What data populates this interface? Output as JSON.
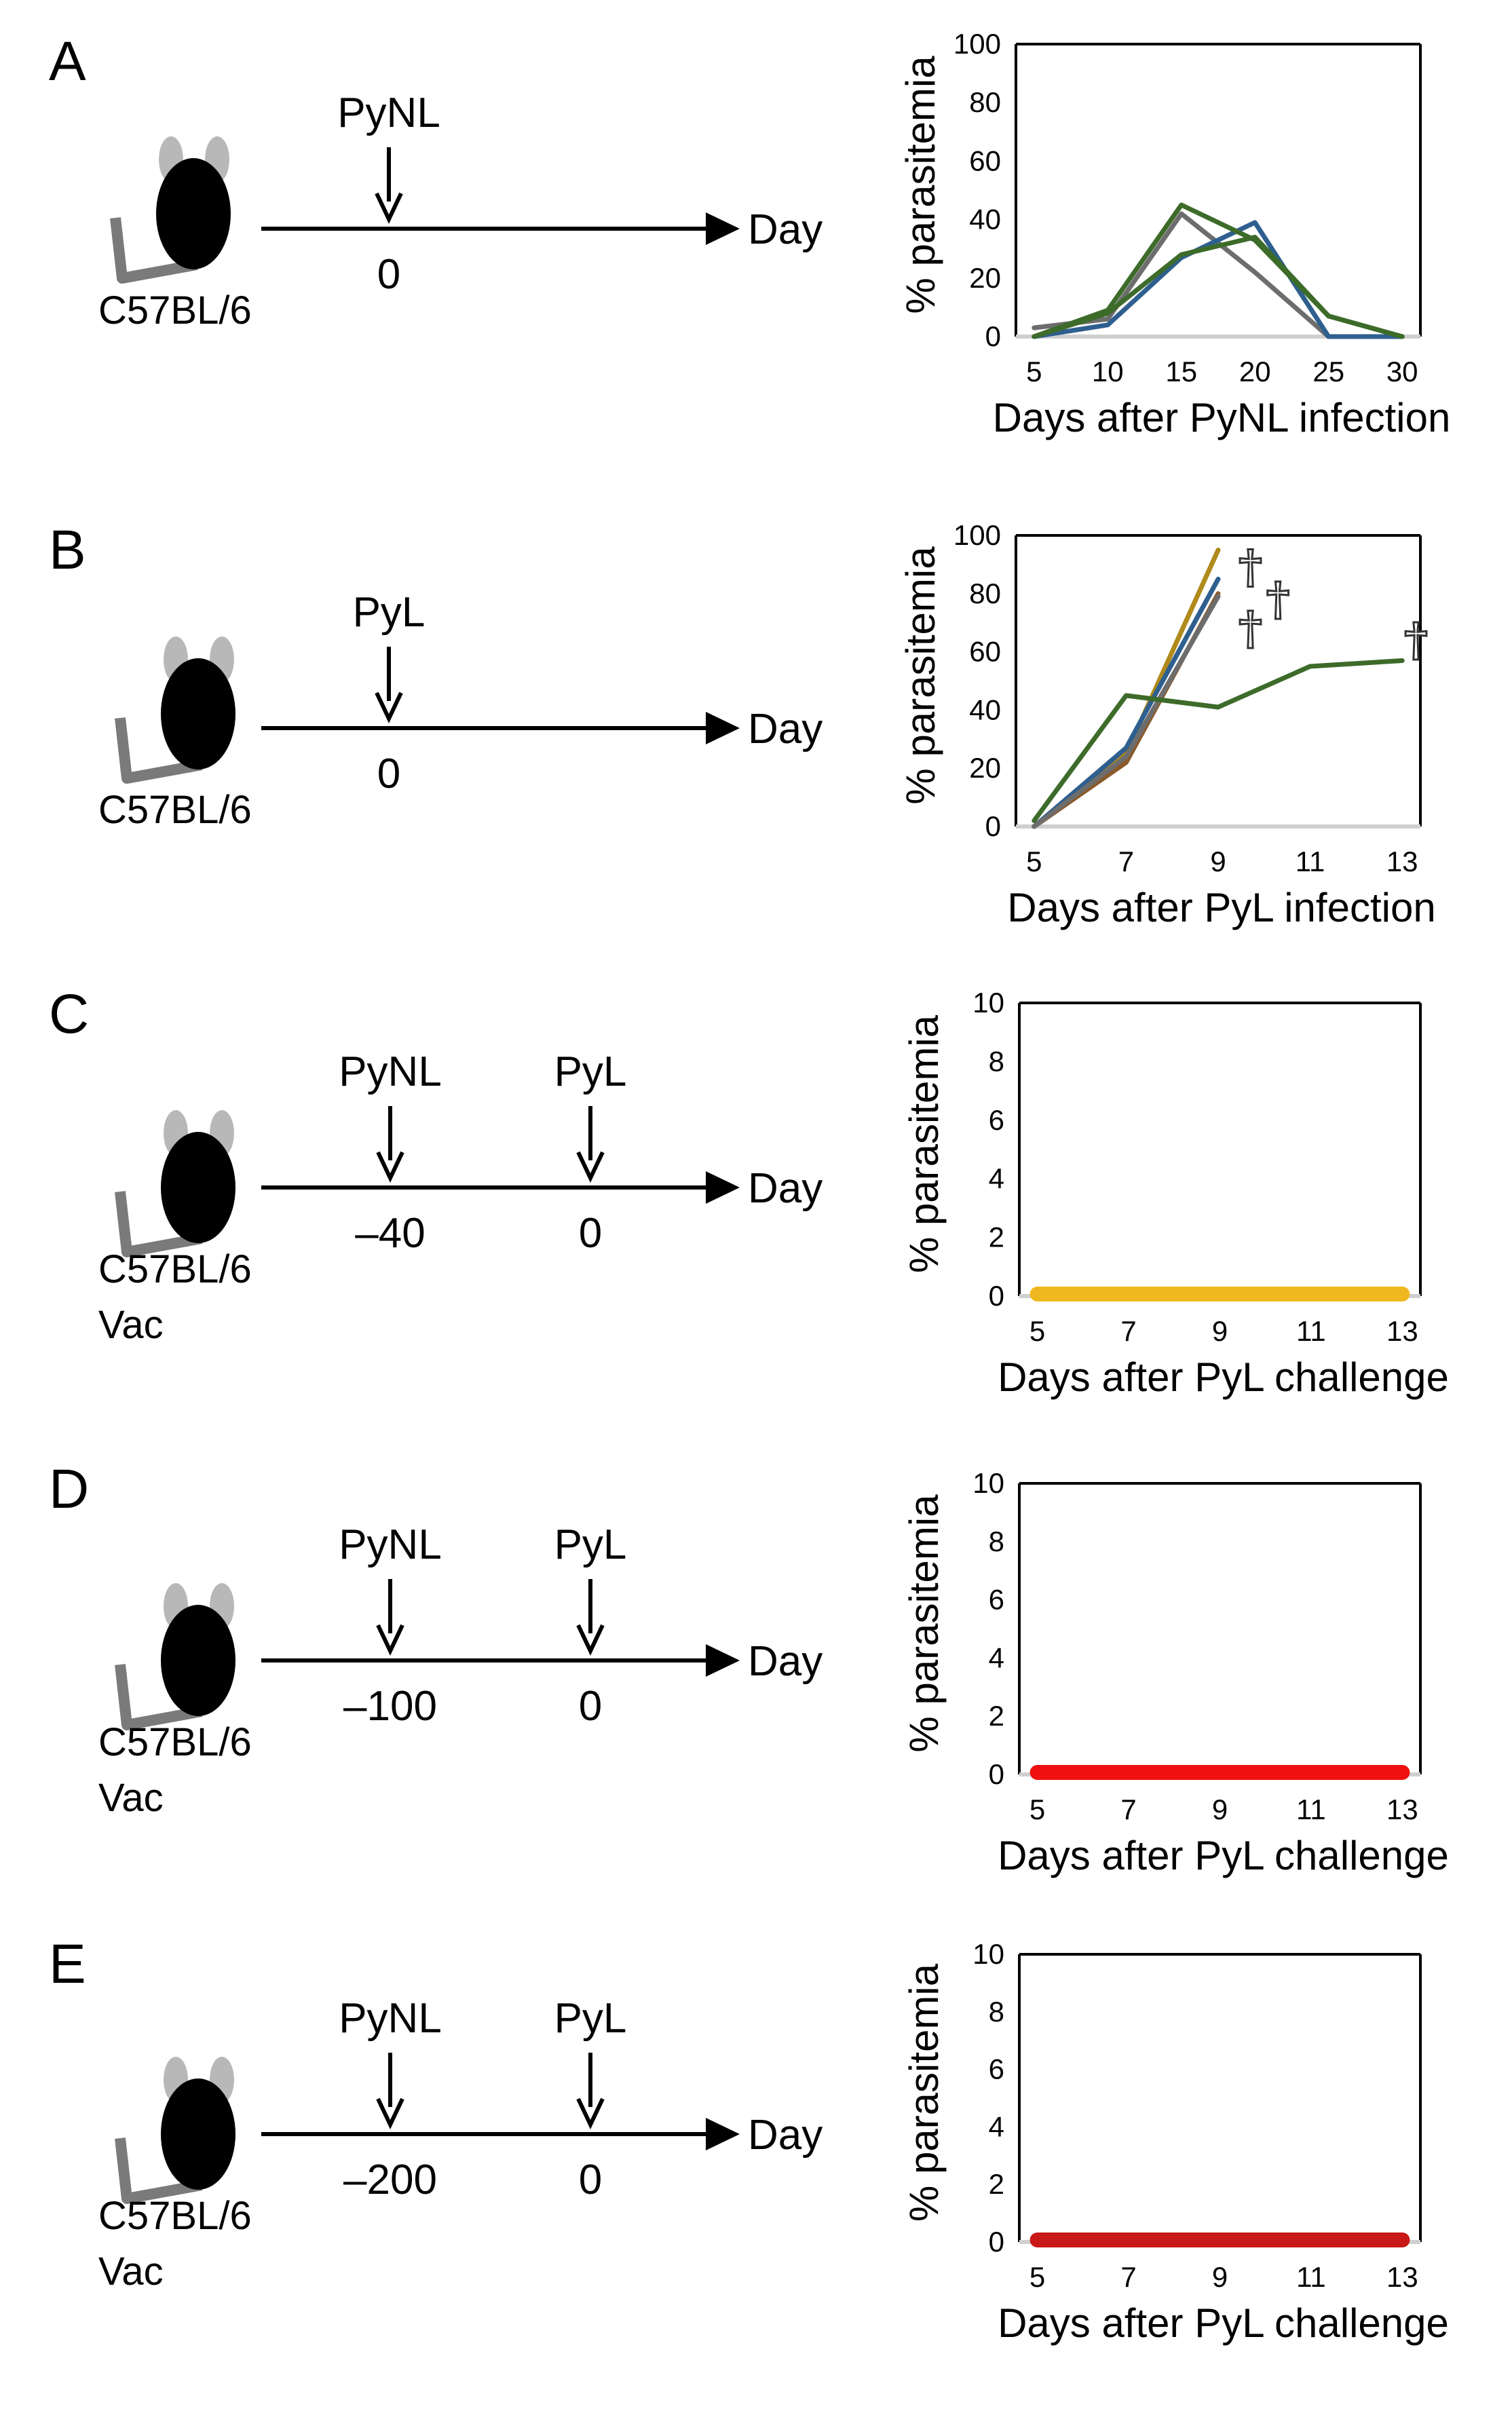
{
  "colors": {
    "gray": "#6d6d6d",
    "blue": "#2e5f8f",
    "green": "#3d6b2a",
    "gold": "#b08a1a",
    "brown": "#8a5a2a",
    "yellow": "#f0b820",
    "red": "#f01010",
    "darkred": "#c81818"
  },
  "panels": [
    {
      "letter": "A",
      "mouse_label": [
        "C57BL/6"
      ],
      "timeline": {
        "end_label": "Day",
        "events": [
          {
            "name": "PyNL",
            "day_label": "0"
          }
        ]
      },
      "chart_data": {
        "type": "line",
        "xlabel": "Days after PyNL infection",
        "ylabel": "% parasitemia",
        "xlim": [
          5,
          30
        ],
        "x_ticks": [
          "5",
          "10",
          "15",
          "20",
          "25",
          "30"
        ],
        "ylim": [
          0,
          100
        ],
        "y_ticks": [
          "0",
          "20",
          "40",
          "60",
          "80",
          "100"
        ],
        "series": [
          {
            "color_key": "gray",
            "points": [
              [
                5,
                3
              ],
              [
                10,
                6
              ],
              [
                15,
                42
              ],
              [
                20,
                22
              ],
              [
                25,
                0
              ],
              [
                30,
                0
              ]
            ]
          },
          {
            "color_key": "blue",
            "points": [
              [
                5,
                0
              ],
              [
                10,
                4
              ],
              [
                15,
                27
              ],
              [
                20,
                39
              ],
              [
                25,
                0
              ],
              [
                30,
                0
              ]
            ]
          },
          {
            "color_key": "green",
            "points": [
              [
                5,
                0
              ],
              [
                10,
                9
              ],
              [
                15,
                45
              ],
              [
                20,
                33
              ],
              [
                25,
                7
              ],
              [
                30,
                0
              ]
            ]
          },
          {
            "color_key": "green",
            "points": [
              [
                5,
                0
              ],
              [
                10,
                8
              ],
              [
                15,
                28
              ],
              [
                20,
                34
              ],
              [
                25,
                7
              ],
              [
                30,
                0
              ]
            ]
          }
        ],
        "death_markers": []
      }
    },
    {
      "letter": "B",
      "mouse_label": [
        "C57BL/6"
      ],
      "timeline": {
        "end_label": "Day",
        "events": [
          {
            "name": "PyL",
            "day_label": "0"
          }
        ]
      },
      "chart_data": {
        "type": "line",
        "xlabel": "Days after PyL infection",
        "ylabel": "% parasitemia",
        "xlim": [
          5,
          13
        ],
        "x_ticks": [
          "5",
          "7",
          "9",
          "11",
          "13"
        ],
        "ylim": [
          0,
          100
        ],
        "y_ticks": [
          "0",
          "20",
          "40",
          "60",
          "80",
          "100"
        ],
        "series": [
          {
            "color_key": "gold",
            "points": [
              [
                5,
                0
              ],
              [
                7,
                25
              ],
              [
                9,
                95
              ]
            ]
          },
          {
            "color_key": "brown",
            "points": [
              [
                5,
                0
              ],
              [
                7,
                22
              ],
              [
                9,
                80
              ]
            ]
          },
          {
            "color_key": "blue",
            "points": [
              [
                5,
                0
              ],
              [
                7,
                27
              ],
              [
                9,
                85
              ]
            ]
          },
          {
            "color_key": "gray",
            "points": [
              [
                5,
                0
              ],
              [
                7,
                24
              ],
              [
                9,
                79
              ]
            ]
          },
          {
            "color_key": "green",
            "points": [
              [
                5,
                2
              ],
              [
                7,
                45
              ],
              [
                9,
                41
              ],
              [
                11,
                55
              ],
              [
                13,
                57
              ]
            ]
          }
        ],
        "death_markers": [
          {
            "glyph": "†",
            "x": 9.7,
            "y": 89
          },
          {
            "glyph": "†",
            "x": 10.3,
            "y": 78
          },
          {
            "glyph": "†",
            "x": 9.7,
            "y": 68
          },
          {
            "glyph": "†",
            "x": 13.3,
            "y": 64
          }
        ]
      }
    },
    {
      "letter": "C",
      "mouse_label": [
        "C57BL/6",
        "Vac"
      ],
      "timeline": {
        "end_label": "Day",
        "events": [
          {
            "name": "PyNL",
            "day_label": "–40"
          },
          {
            "name": "PyL",
            "day_label": "0"
          }
        ]
      },
      "chart_data": {
        "type": "line",
        "xlabel": "Days after PyL challenge",
        "ylabel": "% parasitemia",
        "xlim": [
          5,
          13
        ],
        "x_ticks": [
          "5",
          "7",
          "9",
          "11",
          "13"
        ],
        "ylim": [
          0,
          10
        ],
        "y_ticks": [
          "0",
          "2",
          "4",
          "6",
          "8",
          "10"
        ],
        "series": [
          {
            "color_key": "yellow",
            "thick": true,
            "points": [
              [
                5,
                0
              ],
              [
                7,
                0
              ],
              [
                9,
                0
              ],
              [
                11,
                0
              ],
              [
                13,
                0
              ]
            ]
          }
        ],
        "death_markers": []
      }
    },
    {
      "letter": "D",
      "mouse_label": [
        "C57BL/6",
        "Vac"
      ],
      "timeline": {
        "end_label": "Day",
        "events": [
          {
            "name": "PyNL",
            "day_label": "–100"
          },
          {
            "name": "PyL",
            "day_label": "0"
          }
        ]
      },
      "chart_data": {
        "type": "line",
        "xlabel": "Days after PyL challenge",
        "ylabel": "% parasitemia",
        "xlim": [
          5,
          13
        ],
        "x_ticks": [
          "5",
          "7",
          "9",
          "11",
          "13"
        ],
        "ylim": [
          0,
          10
        ],
        "y_ticks": [
          "0",
          "2",
          "4",
          "6",
          "8",
          "10"
        ],
        "series": [
          {
            "color_key": "red",
            "thick": true,
            "points": [
              [
                5,
                0
              ],
              [
                7,
                0
              ],
              [
                9,
                0
              ],
              [
                11,
                0
              ],
              [
                13,
                0
              ]
            ]
          }
        ],
        "death_markers": []
      }
    },
    {
      "letter": "E",
      "mouse_label": [
        "C57BL/6",
        "Vac"
      ],
      "timeline": {
        "end_label": "Day",
        "events": [
          {
            "name": "PyNL",
            "day_label": "–200"
          },
          {
            "name": "PyL",
            "day_label": "0"
          }
        ]
      },
      "chart_data": {
        "type": "line",
        "xlabel": "Days after PyL challenge",
        "ylabel": "% parasitemia",
        "xlim": [
          5,
          13
        ],
        "x_ticks": [
          "5",
          "7",
          "9",
          "11",
          "13"
        ],
        "ylim": [
          0,
          10
        ],
        "y_ticks": [
          "0",
          "2",
          "4",
          "6",
          "8",
          "10"
        ],
        "series": [
          {
            "color_key": "darkred",
            "thick": true,
            "points": [
              [
                5,
                0
              ],
              [
                7,
                0
              ],
              [
                9,
                0
              ],
              [
                11,
                0
              ],
              [
                13,
                0
              ]
            ]
          }
        ],
        "death_markers": []
      }
    }
  ]
}
